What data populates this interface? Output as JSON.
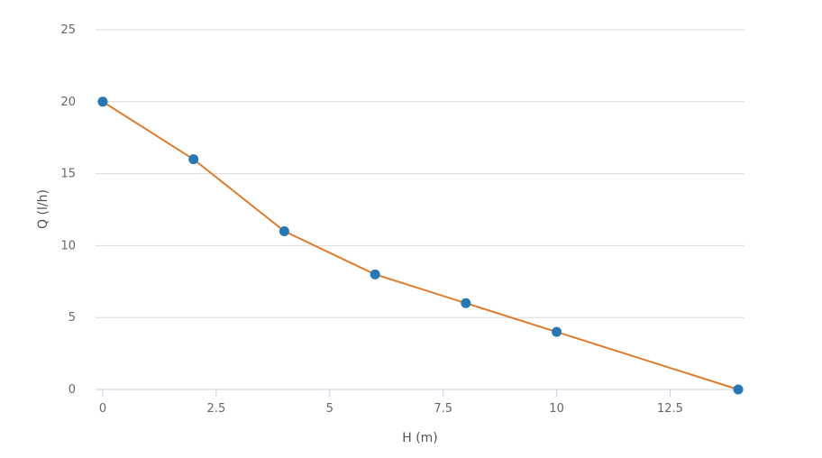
{
  "chart_data": {
    "type": "line",
    "title": "",
    "xlabel": "H (m)",
    "ylabel": "Q (l/h)",
    "xlim": [
      0,
      14
    ],
    "ylim": [
      0,
      25
    ],
    "x_ticks": [
      0,
      2.5,
      5,
      7.5,
      10,
      12.5
    ],
    "y_ticks": [
      0,
      5,
      10,
      15,
      20,
      25
    ],
    "grid": "horizontal",
    "legend": "none",
    "series": [
      {
        "color": "#e07b2a",
        "marker_color": "#2378b5",
        "points": [
          {
            "x": 0,
            "y": 20
          },
          {
            "x": 2,
            "y": 16
          },
          {
            "x": 4,
            "y": 11
          },
          {
            "x": 6,
            "y": 8
          },
          {
            "x": 8,
            "y": 6
          },
          {
            "x": 10,
            "y": 4
          },
          {
            "x": 14,
            "y": 0
          }
        ]
      }
    ]
  }
}
